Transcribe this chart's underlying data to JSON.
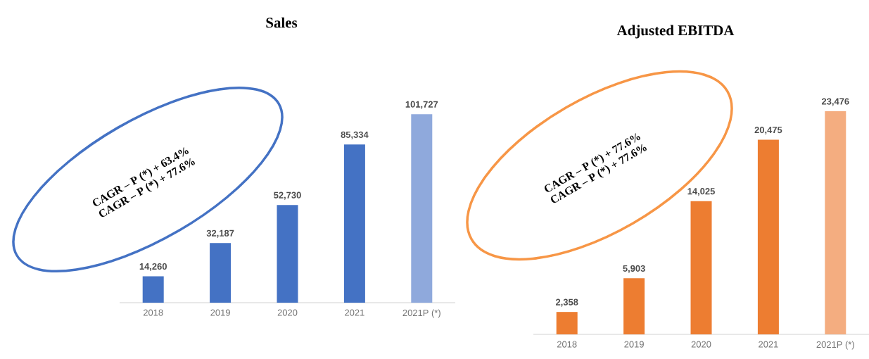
{
  "chart_data": [
    {
      "type": "bar",
      "title": "Sales",
      "categories": [
        "2018",
        "2019",
        "2020",
        "2021",
        "2021P (*)"
      ],
      "values": [
        14260,
        32187,
        52730,
        85334,
        101727
      ],
      "value_labels": [
        "14,260",
        "32,187",
        "52,730",
        "85,334",
        "101,727"
      ],
      "colors": [
        "#4472c4",
        "#4472c4",
        "#4472c4",
        "#4472c4",
        "#8fa9dc"
      ],
      "annotations": [
        "CAGR – P (*) + 63.4%",
        "CAGR – P (*) + 77.6%"
      ]
    },
    {
      "type": "bar",
      "title": "Adjusted EBITDA",
      "categories": [
        "2018",
        "2019",
        "2020",
        "2021",
        "2021P (*)"
      ],
      "values": [
        2358,
        5903,
        14025,
        20475,
        23476
      ],
      "value_labels": [
        "2,358",
        "5,903",
        "14,025",
        "20,475",
        "23,476"
      ],
      "colors": [
        "#ed7d31",
        "#ed7d31",
        "#ed7d31",
        "#ed7d31",
        "#f4ad80"
      ],
      "annotations": [
        "CAGR – P (*) + 77.6%",
        "CAGR – P (*) + 77.6%"
      ]
    }
  ]
}
